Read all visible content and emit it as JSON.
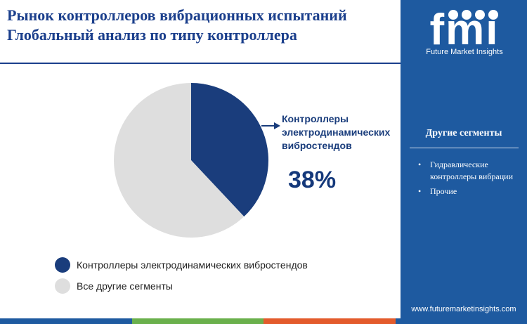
{
  "header": {
    "title_line1": "Рынок контроллеров вибрационных испытаний",
    "title_line2": "Глобальный анализ по типу контроллера"
  },
  "chart_data": {
    "type": "pie",
    "slices": [
      {
        "name": "Контроллеры электродинамических вибростендов",
        "value": 38,
        "color": "#1a3d7c"
      },
      {
        "name": "Все другие сегменты",
        "value": 62,
        "color": "#dedede"
      }
    ],
    "callout": {
      "label": "Контроллеры электродинамических вибростендов",
      "value_text": "38%"
    },
    "legend_position": "bottom-left"
  },
  "legend": {
    "items": [
      {
        "label": "Контроллеры электродинамических вибростендов",
        "color": "#1a3d7c"
      },
      {
        "label": "Все другие сегменты",
        "color": "#dedede"
      }
    ]
  },
  "sidebar": {
    "logo_letters": "fmi",
    "logo_subtitle": "Future Market Insights",
    "title": "Другие сегменты",
    "items": [
      "Гидравлические контроллеры вибрации",
      "Прочие"
    ],
    "website": "www.futuremarketinsights.com",
    "background": "#1e5aa0"
  },
  "bottom_bar_colors": [
    "#1e5aa0",
    "#6ab04c",
    "#e35b2c",
    "#1e5aa0"
  ]
}
